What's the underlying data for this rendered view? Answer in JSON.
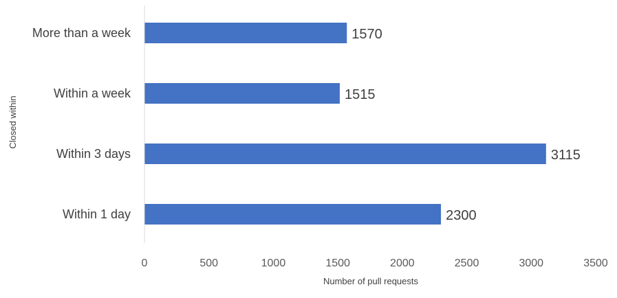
{
  "chart_data": {
    "type": "bar",
    "orientation": "horizontal",
    "title": "",
    "xlabel": "Number of pull requests",
    "ylabel": "Closed within",
    "categories": [
      "More than a week",
      "Within a week",
      "Within 3 days",
      "Within 1 day"
    ],
    "values": [
      1570,
      1515,
      3115,
      2300
    ],
    "data_labels": [
      "1570",
      "1515",
      "3115",
      "2300"
    ],
    "xlim": [
      0,
      3500
    ],
    "x_ticks": [
      0,
      500,
      1000,
      1500,
      2000,
      2500,
      3000,
      3500
    ],
    "grid": false,
    "legend": "none",
    "bar_color": "#4472c4"
  }
}
